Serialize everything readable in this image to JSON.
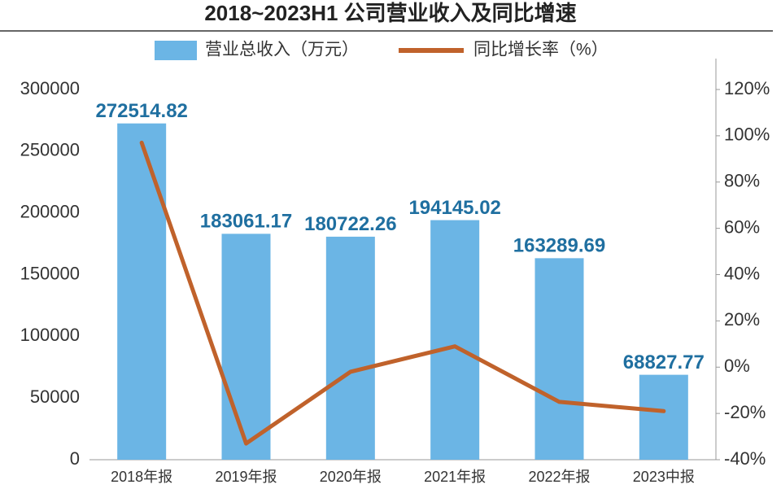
{
  "chart_data": {
    "type": "bar",
    "title": "2018~2023H1 公司营业收入及同比增速",
    "categories": [
      "2018年报",
      "2019年报",
      "2020年报",
      "2021年报",
      "2022年报",
      "2023中报"
    ],
    "series": [
      {
        "name": "营业总收入（万元）",
        "type": "bar",
        "color": "#6bb5e5",
        "values": [
          272514.82,
          183061.17,
          180722.26,
          194145.02,
          163289.69,
          68827.77
        ]
      },
      {
        "name": "同比增长率（%）",
        "type": "line",
        "axis": "y2",
        "color": "#c0622b",
        "values": [
          97,
          -33,
          -2,
          9,
          -15,
          -19
        ]
      }
    ],
    "ylim": [
      0,
      300000
    ],
    "yticks": [
      0,
      50000,
      100000,
      150000,
      200000,
      250000,
      300000
    ],
    "y2lim": [
      -40,
      120
    ],
    "y2ticks": [
      {
        "value": -40,
        "label": "-40%"
      },
      {
        "value": -20,
        "label": "-20%"
      },
      {
        "value": 0,
        "label": "0%"
      },
      {
        "value": 20,
        "label": "20%"
      },
      {
        "value": 40,
        "label": "40%"
      },
      {
        "value": 60,
        "label": "60%"
      },
      {
        "value": 80,
        "label": "80%"
      },
      {
        "value": 100,
        "label": "100%"
      },
      {
        "value": 120,
        "label": "120%"
      }
    ],
    "label_color": "#1f6fa0"
  }
}
